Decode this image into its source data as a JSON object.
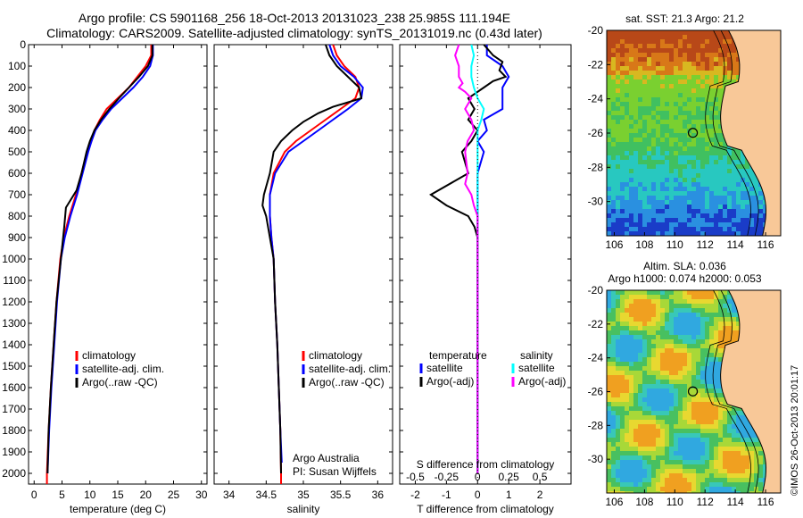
{
  "header": {
    "line1": "Argo profile: CS 5901168_256 18-Oct-2013 20131023_238 25.985S 111.194E",
    "line2": "Climatology: CARS2009. Satellite-adjusted climatology: synTS_20131019.nc (0.43d later)"
  },
  "colors": {
    "clim": "#ff0000",
    "sat": "#0000ff",
    "argo": "#000000",
    "sat_sal": "#00ffff",
    "argo_sal": "#ff00ff"
  },
  "chart_data": [
    {
      "id": "temperature",
      "type": "line",
      "xlabel": "temperature (deg C)",
      "ylabel": "",
      "xlim": [
        -1,
        31
      ],
      "ylim": [
        2050,
        0
      ],
      "xticks": [
        0,
        5,
        10,
        15,
        20,
        25,
        30
      ],
      "yticks": [
        0,
        100,
        200,
        300,
        400,
        500,
        600,
        700,
        800,
        900,
        1000,
        1100,
        1200,
        1300,
        1400,
        1500,
        1600,
        1700,
        1800,
        1900,
        2000
      ],
      "legend": [
        "climatology",
        "satellite-adj. clim.",
        "Argo(..raw -QC)"
      ],
      "series": [
        {
          "name": "climatology",
          "color": "#ff0000",
          "points": [
            [
              21.0,
              0
            ],
            [
              21.0,
              50
            ],
            [
              20.0,
              100
            ],
            [
              18.5,
              150
            ],
            [
              17.0,
              200
            ],
            [
              15.0,
              250
            ],
            [
              13.0,
              300
            ],
            [
              11.8,
              350
            ],
            [
              10.8,
              400
            ],
            [
              10.3,
              450
            ],
            [
              9.5,
              500
            ],
            [
              8.5,
              600
            ],
            [
              7.5,
              700
            ],
            [
              6.3,
              800
            ],
            [
              5.3,
              900
            ],
            [
              4.7,
              1000
            ],
            [
              4.0,
              1200
            ],
            [
              3.5,
              1400
            ],
            [
              3.0,
              1600
            ],
            [
              2.6,
              1800
            ],
            [
              2.3,
              2000
            ],
            [
              2.3,
              2050
            ]
          ]
        },
        {
          "name": "satellite-adj. clim.",
          "color": "#0000ff",
          "points": [
            [
              21.3,
              0
            ],
            [
              21.3,
              50
            ],
            [
              20.8,
              100
            ],
            [
              19.5,
              150
            ],
            [
              17.8,
              200
            ],
            [
              15.8,
              250
            ],
            [
              13.8,
              300
            ],
            [
              12.3,
              350
            ],
            [
              11.0,
              400
            ],
            [
              10.3,
              450
            ],
            [
              9.7,
              500
            ],
            [
              8.7,
              600
            ],
            [
              7.7,
              700
            ],
            [
              6.5,
              800
            ],
            [
              5.5,
              900
            ],
            [
              4.8,
              1000
            ],
            [
              4.1,
              1200
            ],
            [
              3.6,
              1400
            ],
            [
              3.1,
              1600
            ],
            [
              2.7,
              1800
            ],
            [
              2.4,
              2000
            ]
          ]
        },
        {
          "name": "Argo(..raw -QC)",
          "color": "#000000",
          "points": [
            [
              21.2,
              0
            ],
            [
              21.2,
              50
            ],
            [
              20.4,
              100
            ],
            [
              18.8,
              150
            ],
            [
              17.0,
              200
            ],
            [
              15.2,
              250
            ],
            [
              13.5,
              300
            ],
            [
              12.0,
              350
            ],
            [
              10.8,
              400
            ],
            [
              10.0,
              450
            ],
            [
              9.4,
              500
            ],
            [
              8.5,
              600
            ],
            [
              7.6,
              680
            ],
            [
              5.7,
              760
            ],
            [
              5.4,
              850
            ],
            [
              5.0,
              950
            ],
            [
              4.6,
              1050
            ],
            [
              4.0,
              1200
            ],
            [
              3.5,
              1400
            ],
            [
              3.0,
              1600
            ],
            [
              2.6,
              1800
            ],
            [
              2.4,
              2000
            ]
          ]
        }
      ]
    },
    {
      "id": "salinity",
      "type": "line",
      "xlabel": "salinity",
      "ylabel": "",
      "xlim": [
        33.8,
        36.2
      ],
      "ylim": [
        2050,
        0
      ],
      "xticks": [
        34,
        34.5,
        35,
        35.5,
        36
      ],
      "legend": [
        "climatology",
        "satellite-adj. clim.",
        "Argo(..raw -QC)"
      ],
      "annotation": [
        "Argo Australia",
        "PI: Susan Wijffels"
      ],
      "series": [
        {
          "name": "climatology",
          "color": "#ff0000",
          "points": [
            [
              35.4,
              0
            ],
            [
              35.45,
              50
            ],
            [
              35.55,
              100
            ],
            [
              35.7,
              150
            ],
            [
              35.75,
              200
            ],
            [
              35.7,
              250
            ],
            [
              35.5,
              300
            ],
            [
              35.3,
              350
            ],
            [
              35.1,
              400
            ],
            [
              34.9,
              450
            ],
            [
              34.75,
              500
            ],
            [
              34.6,
              600
            ],
            [
              34.55,
              700
            ],
            [
              34.55,
              800
            ],
            [
              34.57,
              900
            ],
            [
              34.6,
              1000
            ],
            [
              34.62,
              1200
            ],
            [
              34.65,
              1400
            ],
            [
              34.67,
              1600
            ],
            [
              34.69,
              1800
            ],
            [
              34.7,
              2000
            ],
            [
              34.7,
              2050
            ]
          ]
        },
        {
          "name": "satellite-adj. clim.",
          "color": "#0000ff",
          "points": [
            [
              35.35,
              0
            ],
            [
              35.4,
              50
            ],
            [
              35.5,
              100
            ],
            [
              35.68,
              150
            ],
            [
              35.8,
              200
            ],
            [
              35.78,
              250
            ],
            [
              35.6,
              300
            ],
            [
              35.4,
              350
            ],
            [
              35.2,
              400
            ],
            [
              35.0,
              450
            ],
            [
              34.8,
              500
            ],
            [
              34.62,
              600
            ],
            [
              34.55,
              700
            ],
            [
              34.55,
              800
            ],
            [
              34.57,
              900
            ],
            [
              34.6,
              1000
            ],
            [
              34.62,
              1200
            ],
            [
              34.65,
              1400
            ],
            [
              34.67,
              1600
            ],
            [
              34.69,
              1800
            ],
            [
              34.71,
              1950
            ]
          ]
        },
        {
          "name": "Argo(..raw -QC)",
          "color": "#000000",
          "points": [
            [
              35.3,
              0
            ],
            [
              35.35,
              50
            ],
            [
              35.45,
              100
            ],
            [
              35.6,
              150
            ],
            [
              35.75,
              200
            ],
            [
              35.78,
              250
            ],
            [
              35.4,
              290
            ],
            [
              35.2,
              320
            ],
            [
              35.0,
              360
            ],
            [
              34.85,
              400
            ],
            [
              34.7,
              450
            ],
            [
              34.6,
              500
            ],
            [
              34.55,
              600
            ],
            [
              34.47,
              700
            ],
            [
              34.45,
              750
            ],
            [
              34.5,
              800
            ],
            [
              34.55,
              900
            ],
            [
              34.6,
              1000
            ],
            [
              34.62,
              1200
            ],
            [
              34.65,
              1400
            ],
            [
              34.67,
              1600
            ],
            [
              34.69,
              1800
            ],
            [
              34.7,
              2000
            ]
          ]
        }
      ]
    },
    {
      "id": "differences",
      "type": "line",
      "xlabel": "T difference from climatology",
      "xlabel_top": "S difference from climatology",
      "xlim": [
        -2.5,
        3.0
      ],
      "ylim": [
        2050,
        0
      ],
      "xticks": [
        -2,
        -1,
        0,
        1,
        2
      ],
      "xticks_s": [
        "-0.5",
        "-0.25",
        "0",
        "0.25",
        "0.5"
      ],
      "legend_t_title": "temperature",
      "legend_s_title": "salinity",
      "legend": [
        "satellite",
        "Argo(-adj)",
        "satellite",
        "Argo(-adj)"
      ],
      "series": [
        {
          "name": "T satellite",
          "color": "#0000ff",
          "points": [
            [
              0.3,
              0
            ],
            [
              0.3,
              50
            ],
            [
              0.8,
              100
            ],
            [
              1.0,
              150
            ],
            [
              0.8,
              200
            ],
            [
              0.8,
              250
            ],
            [
              0.8,
              300
            ],
            [
              0.2,
              350
            ],
            [
              0.3,
              400
            ],
            [
              0.0,
              450
            ],
            [
              0.2,
              500
            ],
            [
              0.0,
              600
            ],
            [
              0.0,
              700
            ],
            [
              0.0,
              800
            ],
            [
              0.0,
              900
            ],
            [
              0.0,
              1000
            ],
            [
              0.0,
              1200
            ],
            [
              0.0,
              1500
            ],
            [
              0.0,
              2000
            ]
          ]
        },
        {
          "name": "T Argo(-adj)",
          "color": "#000000",
          "points": [
            [
              0.2,
              0
            ],
            [
              0.5,
              50
            ],
            [
              0.8,
              80
            ],
            [
              0.7,
              120
            ],
            [
              0.9,
              150
            ],
            [
              0.5,
              170
            ],
            [
              0.2,
              200
            ],
            [
              -0.3,
              250
            ],
            [
              -0.1,
              300
            ],
            [
              -0.3,
              350
            ],
            [
              0.0,
              400
            ],
            [
              -0.2,
              450
            ],
            [
              -0.5,
              500
            ],
            [
              -0.3,
              600
            ],
            [
              -1.5,
              700
            ],
            [
              -1.0,
              750
            ],
            [
              -0.3,
              800
            ],
            [
              -0.1,
              850
            ],
            [
              0.0,
              900
            ],
            [
              0.0,
              1000
            ],
            [
              0.0,
              1200
            ],
            [
              0.0,
              1400
            ],
            [
              0.0,
              2000
            ]
          ]
        },
        {
          "name": "S satellite",
          "color": "#00ffff",
          "points": [
            [
              -0.05,
              0
            ],
            [
              -0.03,
              50
            ],
            [
              -0.05,
              100
            ],
            [
              -0.05,
              150
            ],
            [
              -0.03,
              200
            ],
            [
              0.0,
              250
            ],
            [
              0.05,
              300
            ],
            [
              0.03,
              350
            ],
            [
              0.0,
              400
            ],
            [
              0.0,
              500
            ],
            [
              0.0,
              600
            ],
            [
              0.0,
              800
            ],
            [
              0.0,
              1000
            ],
            [
              0.0,
              1200
            ],
            [
              0.0,
              2000
            ]
          ]
        },
        {
          "name": "S Argo(-adj)",
          "color": "#ff00ff",
          "points": [
            [
              -0.15,
              0
            ],
            [
              -0.18,
              50
            ],
            [
              -0.15,
              100
            ],
            [
              -0.15,
              150
            ],
            [
              -0.12,
              180
            ],
            [
              -0.15,
              200
            ],
            [
              -0.1,
              220
            ],
            [
              -0.05,
              250
            ],
            [
              -0.1,
              300
            ],
            [
              -0.05,
              350
            ],
            [
              -0.03,
              400
            ],
            [
              -0.08,
              450
            ],
            [
              -0.1,
              500
            ],
            [
              -0.08,
              600
            ],
            [
              -0.1,
              650
            ],
            [
              -0.05,
              700
            ],
            [
              -0.03,
              750
            ],
            [
              0.0,
              800
            ],
            [
              0.0,
              900
            ],
            [
              0.0,
              1000
            ],
            [
              0.0,
              1200
            ],
            [
              0.0,
              2000
            ]
          ]
        }
      ]
    },
    {
      "id": "sst-map",
      "type": "heatmap",
      "title": "sat. SST: 21.3 Argo: 21.2",
      "xlim": [
        105.5,
        117
      ],
      "ylim": [
        -32,
        -20
      ],
      "xticks": [
        106,
        108,
        110,
        112,
        114,
        116
      ],
      "yticks": [
        -20,
        -22,
        -24,
        -26,
        -28,
        -30
      ],
      "marker": [
        111.194,
        -25.985
      ]
    },
    {
      "id": "sla-map",
      "type": "heatmap",
      "title": "Altim. SLA: 0.036",
      "subtitle": "Argo h1000: 0.074 h2000: 0.053",
      "xlim": [
        105.5,
        117
      ],
      "ylim": [
        -32,
        -20
      ],
      "xticks": [
        106,
        108,
        110,
        112,
        114,
        116
      ],
      "yticks": [
        -20,
        -22,
        -24,
        -26,
        -28,
        -30
      ],
      "marker": [
        111.194,
        -25.985
      ]
    }
  ],
  "side_label": "©IMOS 26-Oct-2013 20:01:17"
}
